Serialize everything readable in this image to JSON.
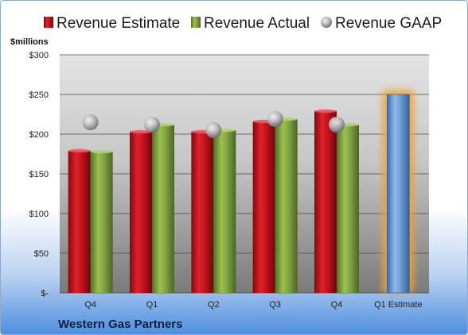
{
  "chart_data": {
    "type": "bar",
    "categories": [
      "Q4",
      "Q1",
      "Q2",
      "Q3",
      "Q4",
      "Q1 Estimate"
    ],
    "series": [
      {
        "name": "Revenue Estimate",
        "color": "#c4121b",
        "values": [
          179,
          203,
          203,
          216,
          229,
          null
        ]
      },
      {
        "name": "Revenue Actual",
        "color": "#7f9f3e",
        "values": [
          178,
          212,
          205,
          219,
          212,
          null
        ]
      },
      {
        "name": "Revenue GAAP",
        "color": "#b8b8bc",
        "values": [
          215,
          212,
          205,
          219,
          212,
          null
        ]
      },
      {
        "name": "Estimate",
        "color": "#6f9fd8",
        "values": [
          null,
          null,
          null,
          null,
          null,
          250
        ]
      }
    ],
    "y_unit_label": "$millions",
    "y_ticks": [
      "$-",
      "$50",
      "$100",
      "$150",
      "$200",
      "$250",
      "$300"
    ],
    "ylim": [
      0,
      300
    ],
    "grid": true,
    "legend_position": "top",
    "highlight_color": "#f5a030"
  },
  "company": "Western Gas Partners"
}
